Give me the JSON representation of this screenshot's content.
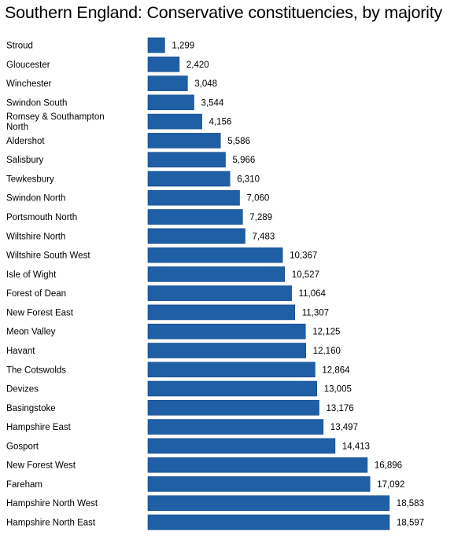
{
  "chart_data": {
    "type": "bar",
    "orientation": "horizontal",
    "title": "Southern England: Conservative constituencies, by majority",
    "xlabel": "",
    "ylabel": "",
    "grid": false,
    "colors": {
      "bar": "#1f5fa6",
      "bar_edge": "#164a85"
    },
    "categories": [
      "Stroud",
      "Gloucester",
      "Winchester",
      "Swindon South",
      "Romsey & Southampton North",
      "Aldershot",
      "Salisbury",
      "Tewkesbury",
      "Swindon North",
      "Portsmouth North",
      "Wiltshire North",
      "Wiltshire South West",
      "Isle of Wight",
      "Forest of Dean",
      "New Forest East",
      "Meon Valley",
      "Havant",
      "The Cotswolds",
      "Devizes",
      "Basingstoke",
      "Hampshire East",
      "Gosport",
      "New Forest West",
      "Fareham",
      "Hampshire North West",
      "Hampshire North East"
    ],
    "values": [
      1299,
      2420,
      3048,
      3544,
      4156,
      5586,
      5966,
      6310,
      7060,
      7289,
      7483,
      10367,
      10527,
      11064,
      11307,
      12125,
      12160,
      12864,
      13005,
      13176,
      13497,
      14413,
      16896,
      17092,
      18583,
      18597
    ],
    "value_labels": [
      "1,299",
      "2,420",
      "3,048",
      "3,544",
      "4,156",
      "5,586",
      "5,966",
      "6,310",
      "7,060",
      "7,289",
      "7,483",
      "10,367",
      "10,527",
      "11,064",
      "11,307",
      "12,125",
      "12,160",
      "12,864",
      "13,005",
      "13,176",
      "13,497",
      "14,413",
      "16,896",
      "17,092",
      "18,583",
      "18,597"
    ],
    "xlim": [
      0,
      18597
    ]
  }
}
